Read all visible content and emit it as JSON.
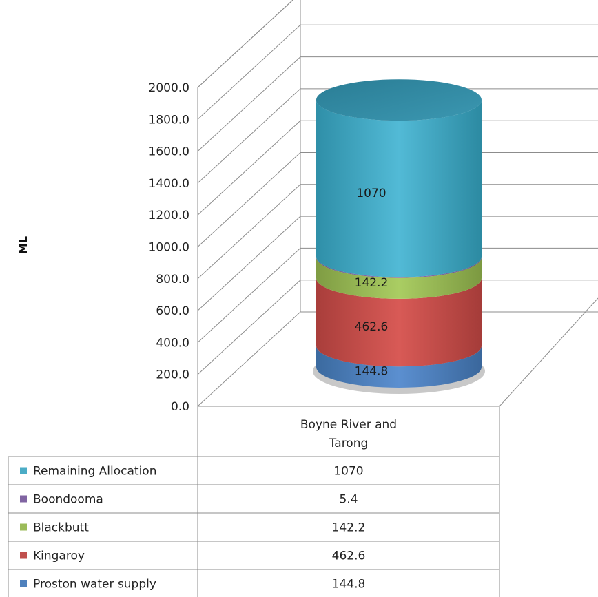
{
  "chart_data": {
    "type": "bar",
    "style": "3d-stacked-cylinder",
    "title": "",
    "ylabel": "ML",
    "ylim": [
      0,
      2000
    ],
    "yticks": [
      "0.0",
      "200.0",
      "400.0",
      "600.0",
      "800.0",
      "1000.0",
      "1200.0",
      "1400.0",
      "1600.0",
      "1800.0",
      "2000.0"
    ],
    "grid": true,
    "categories": [
      "Boyne River and Tarong"
    ],
    "category_lines": [
      "Boyne River and",
      "Tarong"
    ],
    "series": [
      {
        "name": "Proston water supply",
        "values": [
          144.8
        ],
        "label": "144.8",
        "color": "#4f81bd"
      },
      {
        "name": "Kingaroy",
        "values": [
          462.6
        ],
        "label": "462.6",
        "color": "#c0504d"
      },
      {
        "name": "Blackbutt",
        "values": [
          142.2
        ],
        "label": "142.2",
        "color": "#9bbb59"
      },
      {
        "name": "Boondooma",
        "values": [
          5.4
        ],
        "label": "5.4",
        "color": "#8064a2"
      },
      {
        "name": "Remaining Allocation",
        "values": [
          1070
        ],
        "label": "1070",
        "color": "#4bacc6"
      }
    ],
    "data_table": true
  }
}
